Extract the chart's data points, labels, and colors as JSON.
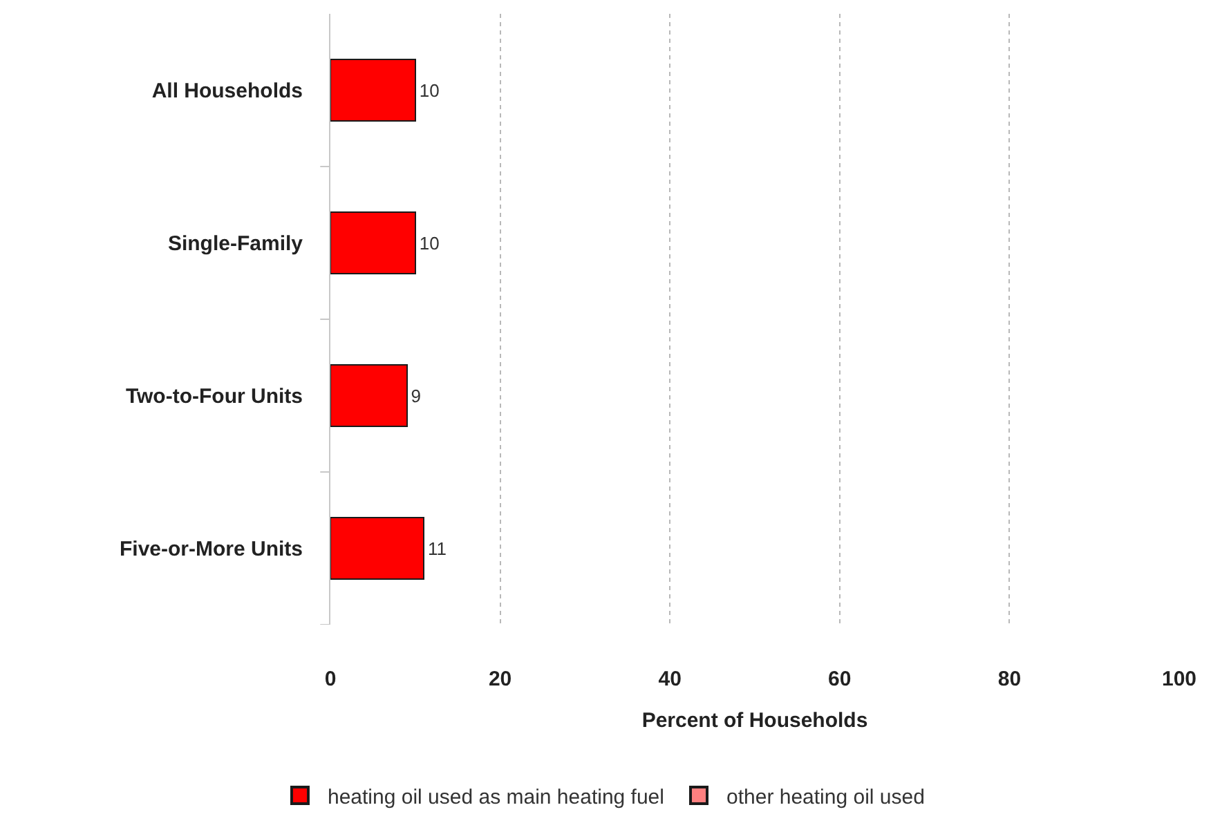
{
  "chart_data": {
    "type": "bar",
    "orientation": "horizontal",
    "stacked": true,
    "xlabel": "Percent of Households",
    "categories": [
      "All Households",
      "Single-Family",
      "Two-to-Four Units",
      "Five-or-More Units"
    ],
    "series": [
      {
        "name": "heating oil used as main heating fuel",
        "color": "#ff0000",
        "values": [
          10,
          10,
          9,
          11
        ]
      },
      {
        "name": "other heating oil used",
        "color": "#ff8080",
        "values": [
          null,
          null,
          null,
          null
        ]
      }
    ],
    "xlim": [
      0,
      100
    ],
    "xticks": [
      0,
      20,
      40,
      60,
      80,
      100
    ],
    "grid": "x",
    "legend": "bottom",
    "data_labels": true
  }
}
